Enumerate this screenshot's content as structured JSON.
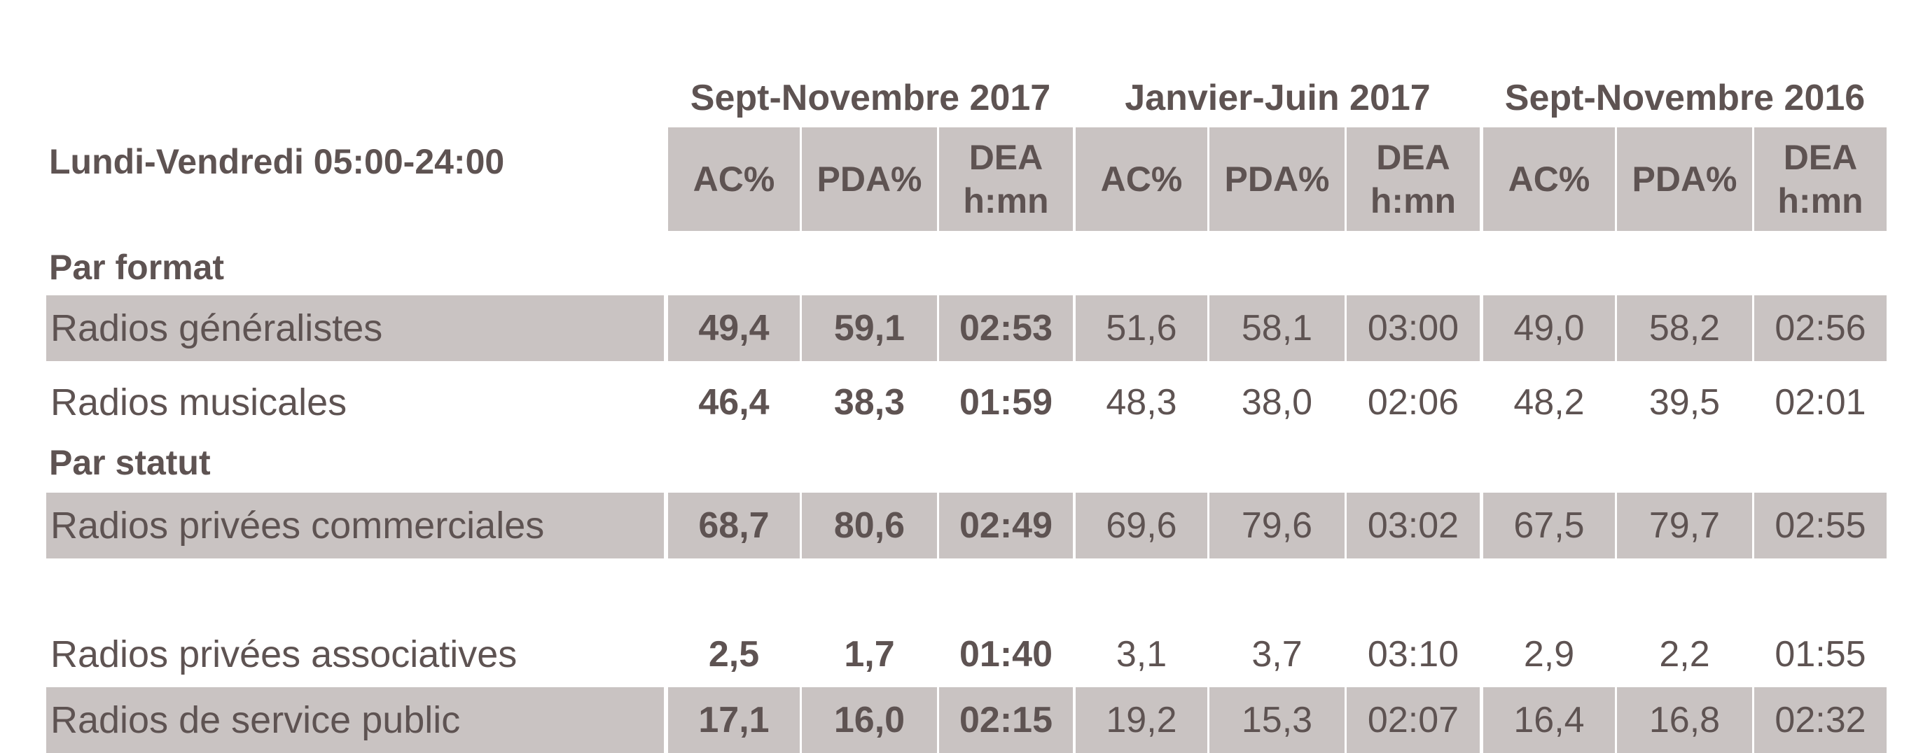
{
  "chart_data": {
    "type": "table",
    "corner_label": "Lundi-Vendredi 05:00-24:00",
    "periods": [
      "Sept-Novembre 2017",
      "Janvier-Juin 2017",
      "Sept-Novembre 2016"
    ],
    "column_headers": [
      [
        "AC%"
      ],
      [
        "PDA%"
      ],
      [
        "DEA",
        "h:mn"
      ],
      [
        "AC%"
      ],
      [
        "PDA%"
      ],
      [
        "DEA",
        "h:mn"
      ],
      [
        "AC%"
      ],
      [
        "PDA%"
      ],
      [
        "DEA",
        "h:mn"
      ]
    ],
    "groups": [
      {
        "title": "Par format",
        "rows": [
          {
            "label": "Radios généralistes",
            "values": [
              "49,4",
              "59,1",
              "02:53",
              "51,6",
              "58,1",
              "03:00",
              "49,0",
              "58,2",
              "02:56"
            ]
          },
          {
            "label": "Radios musicales",
            "values": [
              "46,4",
              "38,3",
              "01:59",
              "48,3",
              "38,0",
              "02:06",
              "48,2",
              "39,5",
              "02:01"
            ]
          }
        ]
      },
      {
        "title": "Par statut",
        "rows": [
          {
            "label": "Radios privées commerciales",
            "values": [
              "68,7",
              "80,6",
              "02:49",
              "69,6",
              "79,6",
              "03:02",
              "67,5",
              "79,7",
              "02:55"
            ]
          },
          {
            "label": "Radios privées associatives",
            "values": [
              "2,5",
              "1,7",
              "01:40",
              "3,1",
              "3,7",
              "03:10",
              "2,9",
              "2,2",
              "01:55"
            ]
          },
          {
            "label": "Radios de service public",
            "values": [
              "17,1",
              "16,0",
              "02:15",
              "19,2",
              "15,3",
              "02:07",
              "16,4",
              "16,8",
              "02:32"
            ]
          }
        ]
      }
    ],
    "colors": {
      "shade": "#c9c3c2",
      "text": "#5e5352"
    }
  }
}
